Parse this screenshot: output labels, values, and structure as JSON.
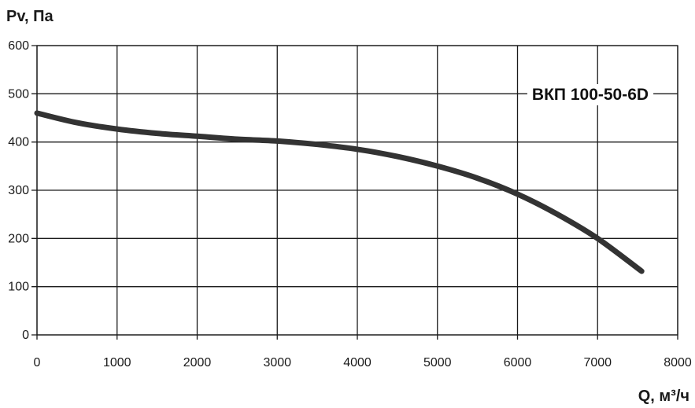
{
  "chart_data": {
    "type": "line",
    "ylabel": "Pv, Па",
    "xlabel": "Q, м³/ч",
    "xlim": [
      0,
      8000
    ],
    "ylim": [
      0,
      600
    ],
    "x_ticks": [
      "0",
      "1000",
      "2000",
      "3000",
      "4000",
      "5000",
      "6000",
      "7000",
      "8000"
    ],
    "y_ticks": [
      "0",
      "100",
      "200",
      "300",
      "400",
      "500",
      "600"
    ],
    "grid": true,
    "series": [
      {
        "name": "ВКП 100-50-6D",
        "color": "#333333",
        "x": [
          0,
          500,
          1000,
          1500,
          2000,
          2500,
          3000,
          3500,
          4000,
          4500,
          5000,
          5500,
          6000,
          6500,
          7000,
          7550
        ],
        "y": [
          460,
          440,
          427,
          418,
          412,
          406,
          402,
          395,
          385,
          370,
          350,
          325,
          292,
          250,
          200,
          132
        ]
      }
    ]
  }
}
